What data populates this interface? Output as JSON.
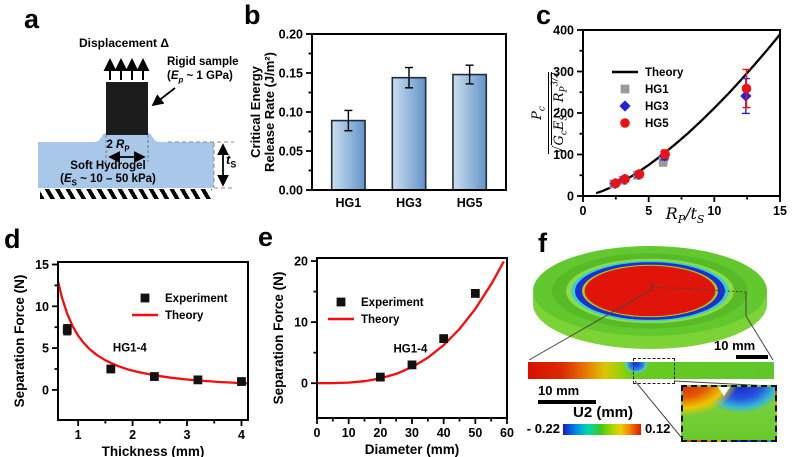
{
  "panel_labels": {
    "a": "a",
    "b": "b",
    "c": "c",
    "d": "d",
    "e": "e",
    "f": "f"
  },
  "panel_a": {
    "displacement": "Displacement Δ",
    "rigid_1": "Rigid sample",
    "rigid_2": "(<i>E<sub>p</sub></i> ~ 1 GPa)",
    "rp": "2 <i>R</i><sub>P</sub>",
    "gel_1": "Soft Hydrogel",
    "gel_2": "(<i>E</i><sub>S</sub> ~ 10 – 50 kPa)",
    "ts": "<i>t</i><sub>S</sub>",
    "gel_color": "#a9c7e8",
    "sample_color": "#1c1c1c"
  },
  "chart_data": {
    "b": {
      "type": "bar",
      "ylabel": [
        "Critical Energy",
        "Release Rate (J/m²)"
      ],
      "categories": [
        "HG1",
        "HG3",
        "HG5"
      ],
      "values": [
        0.089,
        0.144,
        0.148
      ],
      "errors": [
        0.013,
        0.013,
        0.012
      ],
      "xlim": [
        0.4,
        3.6
      ],
      "ylim": [
        0,
        0.2
      ],
      "yticks": [
        0,
        0.05,
        0.1,
        0.15,
        0.2
      ],
      "ytick_labels": [
        "0.00",
        "0.05",
        "0.10",
        "0.15",
        "0.20"
      ],
      "bar_width": 0.55,
      "bar_fill": [
        "#cbdeef",
        "#6394c8"
      ],
      "bar_stroke": "#1f2d3d"
    },
    "c": {
      "type": "scatter",
      "xlabel_html": "<i>R</i><sub>P</sub>/<i>t</i><sub>S</sub>",
      "ylabel_num_html": "<i>P</i><sub>c</sub>",
      "ylabel_den_html": "√<span class=\"ovl\"><i>G</i><sub>c</sub><i>E</i><sub>S</sub> · <i>R</i><sub>P</sub><sup>3/2</sup></span>",
      "xlim": [
        0,
        15
      ],
      "ylim": [
        0,
        400
      ],
      "xticks": [
        0,
        5,
        10,
        15
      ],
      "xtick_labels": [
        "0",
        "5",
        "10",
        "15"
      ],
      "yticks": [
        0,
        100,
        200,
        300,
        400
      ],
      "ytick_labels": [
        "0",
        "100",
        "200",
        "300",
        "400"
      ],
      "theory": {
        "label": "Theory",
        "color": "#000000",
        "x": [
          1,
          1.5,
          2,
          2.5,
          3,
          3.5,
          4,
          4.5,
          5,
          6,
          7,
          8,
          9,
          10,
          11,
          12,
          13,
          14,
          15
        ],
        "y": [
          6.7,
          12.3,
          19.0,
          26.5,
          34.8,
          43.9,
          53.6,
          64.0,
          74.9,
          98.4,
          124.1,
          151.6,
          180.9,
          211.9,
          244.4,
          278.5,
          314.1,
          351.1,
          389.4
        ]
      },
      "series": [
        {
          "name": "HG1",
          "marker": "square",
          "color": "#9a9a9a",
          "x": [
            2.35,
            3.05,
            4.15,
            6.1
          ],
          "y": [
            29,
            38,
            50,
            84
          ],
          "err": [
            6,
            6,
            7,
            12
          ]
        },
        {
          "name": "HG3",
          "marker": "diamond",
          "color": "#2121dd",
          "x": [
            2.45,
            3.15,
            4.25,
            6.2,
            12.4
          ],
          "y": [
            30,
            40,
            52,
            97,
            241
          ],
          "err": [
            6,
            6,
            7,
            10,
            42
          ]
        },
        {
          "name": "HG5",
          "marker": "circle",
          "color": "#ee1111",
          "x": [
            2.5,
            3.2,
            4.3,
            6.25,
            12.45
          ],
          "y": [
            31,
            41,
            53,
            101,
            259
          ],
          "err": [
            6,
            6,
            7,
            10,
            46
          ]
        }
      ],
      "legend": [
        {
          "label": "Theory",
          "line": "#000000"
        },
        {
          "label": "HG1",
          "marker": "square",
          "color": "#9a9a9a"
        },
        {
          "label": "HG3",
          "marker": "diamond",
          "color": "#2121dd"
        },
        {
          "label": "HG5",
          "marker": "circle",
          "color": "#ee1111"
        }
      ]
    },
    "d": {
      "type": "scatter",
      "xlabel": "Thickness (mm)",
      "ylabel": "Separation Force (N)",
      "xlim": [
        0.63,
        4.12
      ],
      "ylim": [
        -3.6,
        15.3
      ],
      "xticks": [
        1,
        2,
        3,
        4
      ],
      "xtick_labels": [
        "1",
        "2",
        "3",
        "4"
      ],
      "yticks": [
        0,
        5,
        10,
        15
      ],
      "ytick_labels": [
        "0",
        "5",
        "10",
        "15"
      ],
      "theory": {
        "label": "Theory",
        "color": "#fb0a0a",
        "x": [
          0.63,
          0.7,
          0.8,
          0.9,
          1,
          1.1,
          1.2,
          1.35,
          1.5,
          1.7,
          1.9,
          2.1,
          2.4,
          2.7,
          3,
          3.3,
          3.6,
          4,
          4.12
        ],
        "y": [
          13.0,
          11.1,
          9.08,
          7.61,
          6.5,
          5.63,
          4.94,
          4.14,
          3.54,
          2.93,
          2.48,
          2.14,
          1.75,
          1.46,
          1.25,
          1.08,
          0.95,
          0.81,
          0.78
        ]
      },
      "series": [
        {
          "name": "Experiment",
          "marker": "square",
          "color": "#111111",
          "x": [
            0.8,
            1.6,
            2.4,
            3.2,
            4.0
          ],
          "y": [
            7.2,
            2.5,
            1.6,
            1.2,
            1.0
          ],
          "err": [
            0.6,
            0.25,
            0.2,
            0.2,
            0.2
          ]
        }
      ],
      "legend": [
        {
          "label": "Experiment",
          "marker": "square",
          "color": "#111111"
        },
        {
          "label": "Theory",
          "line": "#fb0a0a"
        }
      ],
      "annotation": {
        "text": "HG1-4",
        "x": 1.95,
        "y": 4.6
      }
    },
    "e": {
      "type": "scatter",
      "xlabel": "Diameter (mm)",
      "ylabel": "Separation Force (N)",
      "xlim": [
        0,
        60
      ],
      "ylim": [
        -5.7,
        20.5
      ],
      "xticks": [
        0,
        10,
        20,
        30,
        40,
        50,
        60
      ],
      "xtick_labels": [
        "0",
        "10",
        "20",
        "30",
        "40",
        "50",
        "60"
      ],
      "yticks": [
        0,
        10,
        20
      ],
      "ytick_labels": [
        "0",
        "10",
        "20"
      ],
      "theory": {
        "label": "Theory",
        "color": "#fb0a0a",
        "x": [
          0,
          5,
          10,
          15,
          20,
          25,
          30,
          35,
          40,
          45,
          50,
          55,
          59
        ],
        "y": [
          0,
          0.01,
          0.1,
          0.33,
          0.78,
          1.52,
          2.63,
          4.18,
          6.23,
          8.88,
          12.17,
          16.2,
          19.95
        ]
      },
      "series": [
        {
          "name": "Experiment",
          "marker": "square",
          "color": "#111111",
          "x": [
            20,
            30,
            40,
            50
          ],
          "y": [
            1.0,
            3.0,
            7.3,
            14.7
          ],
          "err": [
            0.3,
            0.3,
            0.4,
            0.5
          ]
        }
      ],
      "legend": [
        {
          "label": "Experiment",
          "marker": "square",
          "color": "#111111"
        },
        {
          "label": "Theory",
          "line": "#fb0a0a"
        }
      ],
      "annotation": {
        "text": "HG1-4",
        "x": 29.5,
        "y": 5.0
      }
    }
  },
  "panel_f": {
    "scalebar_disc": "10 mm",
    "scalebar_strip": "10 mm",
    "colorbar_title": "U2 (mm)",
    "colorbar_min": "- 0.22",
    "colorbar_max": "0.12",
    "colormap": [
      "#141ec8",
      "#0090e8",
      "#00d8b0",
      "#3cc81e",
      "#a0d800",
      "#f0d000",
      "#f08000",
      "#e81400"
    ],
    "disc_colors": {
      "side": "#7cd335",
      "top": "#63c82e",
      "annulus": "#56bb27",
      "light_green": "#8edc42",
      "cyan": "#3ecfc4",
      "blue": "#1c2ed6",
      "yellow_rim": "#aed400",
      "red_center": "#e01408"
    }
  }
}
